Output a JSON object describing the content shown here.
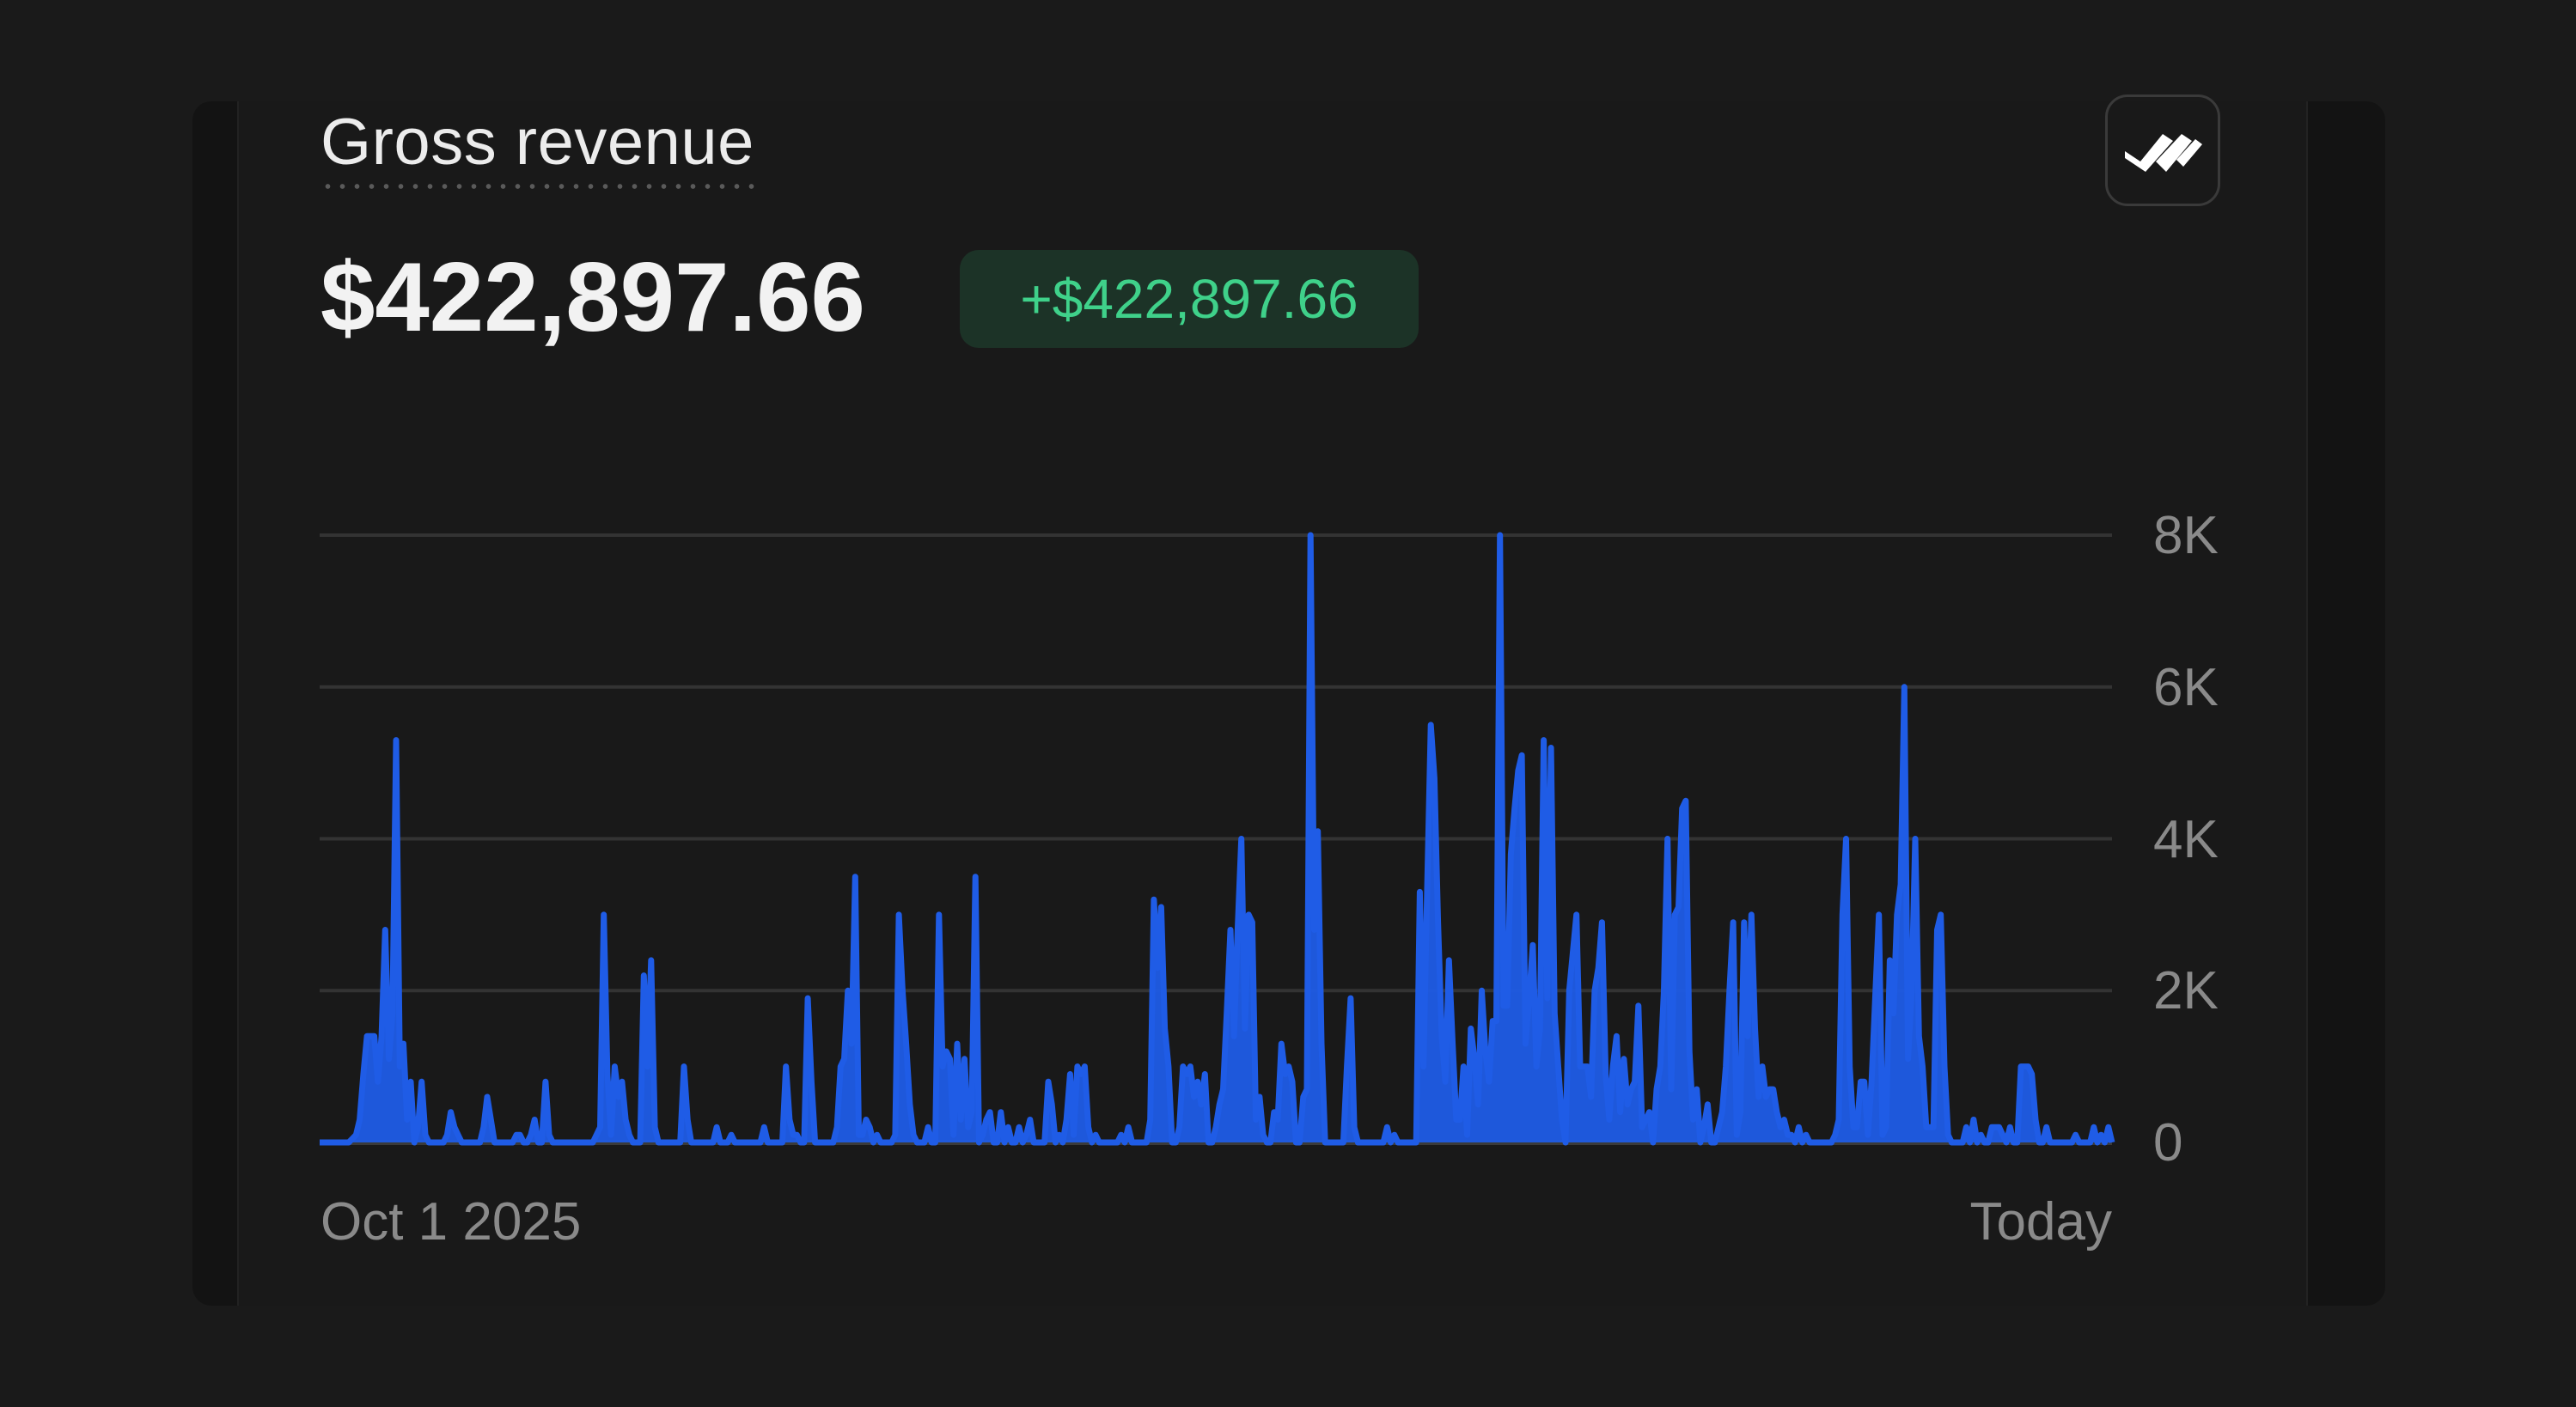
{
  "card": {
    "title": "Gross revenue",
    "amount": "$422,897.66",
    "change_badge": "+$422,897.66",
    "icon": "checkmarks-logo-icon"
  },
  "colors": {
    "background": "#1a1a1a",
    "line": "#1f5ce6",
    "badge_text": "#3fd18a",
    "badge_bg": "#1c3327"
  },
  "chart_data": {
    "type": "area",
    "title": "",
    "xlabel": "",
    "ylabel": "",
    "x_start_label": "Oct 1 2025",
    "x_end_label": "Today",
    "yticks": [
      "0",
      "2K",
      "4K",
      "6K",
      "8K"
    ],
    "ylim": [
      0,
      8000
    ],
    "grid": true,
    "series": [
      {
        "values": [
          0,
          0,
          0,
          0,
          0,
          0,
          0,
          0,
          0,
          50,
          100,
          300,
          900,
          1400,
          1400,
          1400,
          800,
          1400,
          2800,
          1100,
          1700,
          5300,
          1000,
          1300,
          300,
          800,
          0,
          200,
          800,
          100,
          0,
          0,
          0,
          0,
          0,
          100,
          400,
          200,
          100,
          0,
          0,
          0,
          0,
          0,
          0,
          200,
          600,
          300,
          0,
          0,
          0,
          0,
          0,
          0,
          100,
          100,
          0,
          0,
          100,
          300,
          0,
          0,
          800,
          100,
          0,
          0,
          0,
          0,
          0,
          0,
          0,
          0,
          0,
          0,
          0,
          0,
          100,
          200,
          3000,
          900,
          100,
          1000,
          600,
          800,
          300,
          100,
          0,
          0,
          0,
          2200,
          1000,
          2400,
          200,
          0,
          0,
          0,
          0,
          0,
          0,
          0,
          1000,
          300,
          0,
          0,
          0,
          0,
          0,
          0,
          0,
          200,
          0,
          0,
          0,
          100,
          0,
          0,
          0,
          0,
          0,
          0,
          0,
          0,
          200,
          0,
          0,
          0,
          0,
          0,
          1000,
          300,
          100,
          100,
          0,
          0,
          1900,
          800,
          0,
          0,
          0,
          0,
          0,
          0,
          200,
          1000,
          1100,
          2000,
          1300,
          3500,
          100,
          100,
          300,
          200,
          0,
          100,
          0,
          0,
          0,
          0,
          100,
          3000,
          2000,
          1300,
          500,
          100,
          0,
          0,
          0,
          200,
          0,
          0,
          3000,
          1000,
          1200,
          1100,
          100,
          1300,
          300,
          1100,
          200,
          400,
          3500,
          0,
          100,
          300,
          400,
          0,
          0,
          400,
          0,
          200,
          0,
          0,
          200,
          0,
          100,
          300,
          0,
          0,
          0,
          0,
          800,
          500,
          0,
          100,
          0,
          300,
          900,
          100,
          1000,
          900,
          1000,
          200,
          0,
          100,
          0,
          0,
          0,
          0,
          0,
          0,
          100,
          0,
          200,
          0,
          0,
          0,
          0,
          0,
          300,
          3200,
          2300,
          3100,
          1500,
          1000,
          0,
          0,
          200,
          1000,
          900,
          1000,
          600,
          800,
          500,
          900,
          0,
          0,
          200,
          500,
          700,
          1700,
          2800,
          1400,
          2800,
          4000,
          1500,
          3000,
          2900,
          300,
          600,
          100,
          0,
          0,
          400,
          300,
          1300,
          900,
          1000,
          800,
          0,
          0,
          600,
          700,
          8000,
          2800,
          4100,
          1300,
          0,
          0,
          0,
          0,
          0,
          0,
          1000,
          1900,
          200,
          0,
          0,
          0,
          0,
          0,
          0,
          0,
          0,
          200,
          0,
          100,
          0,
          0,
          0,
          0,
          0,
          0,
          3300,
          1000,
          3300,
          5500,
          4800,
          2900,
          1400,
          800,
          2400,
          1300,
          300,
          300,
          1000,
          100,
          1500,
          1100,
          500,
          2000,
          1200,
          800,
          1600,
          1600,
          8000,
          1800,
          1800,
          3800,
          4400,
          4900,
          5100,
          1300,
          1900,
          2600,
          1000,
          1500,
          5300,
          1900,
          5200,
          1700,
          1000,
          300,
          0,
          2000,
          2500,
          3000,
          1000,
          1000,
          1000,
          600,
          2000,
          2300,
          2900,
          900,
          300,
          1000,
          1400,
          400,
          1100,
          500,
          700,
          800,
          1800,
          200,
          300,
          400,
          0,
          700,
          1000,
          2000,
          4000,
          700,
          3000,
          3100,
          4400,
          4500,
          1200,
          300,
          700,
          0,
          200,
          500,
          0,
          0,
          200,
          400,
          1000,
          2000,
          2900,
          100,
          400,
          2900,
          1400,
          3000,
          1500,
          600,
          1000,
          600,
          700,
          700,
          400,
          200,
          300,
          100,
          100,
          0,
          200,
          0,
          100,
          0,
          0,
          0,
          0,
          0,
          0,
          0,
          100,
          300,
          3000,
          4000,
          1000,
          200,
          200,
          800,
          800,
          100,
          800,
          1900,
          3000,
          100,
          200,
          2400,
          1700,
          3000,
          3400,
          6000,
          1100,
          2000,
          4000,
          1400,
          1000,
          200,
          200,
          200,
          2800,
          3000,
          1000,
          100,
          0,
          0,
          0,
          0,
          200,
          0,
          300,
          0,
          100,
          0,
          0,
          200,
          200,
          200,
          100,
          0,
          200,
          0,
          0,
          1000,
          1000,
          1000,
          900,
          300,
          0,
          0,
          200,
          0,
          0,
          0,
          0,
          0,
          0,
          0,
          100,
          0,
          0,
          0,
          0,
          200,
          0,
          100,
          0,
          200,
          0
        ]
      }
    ]
  }
}
